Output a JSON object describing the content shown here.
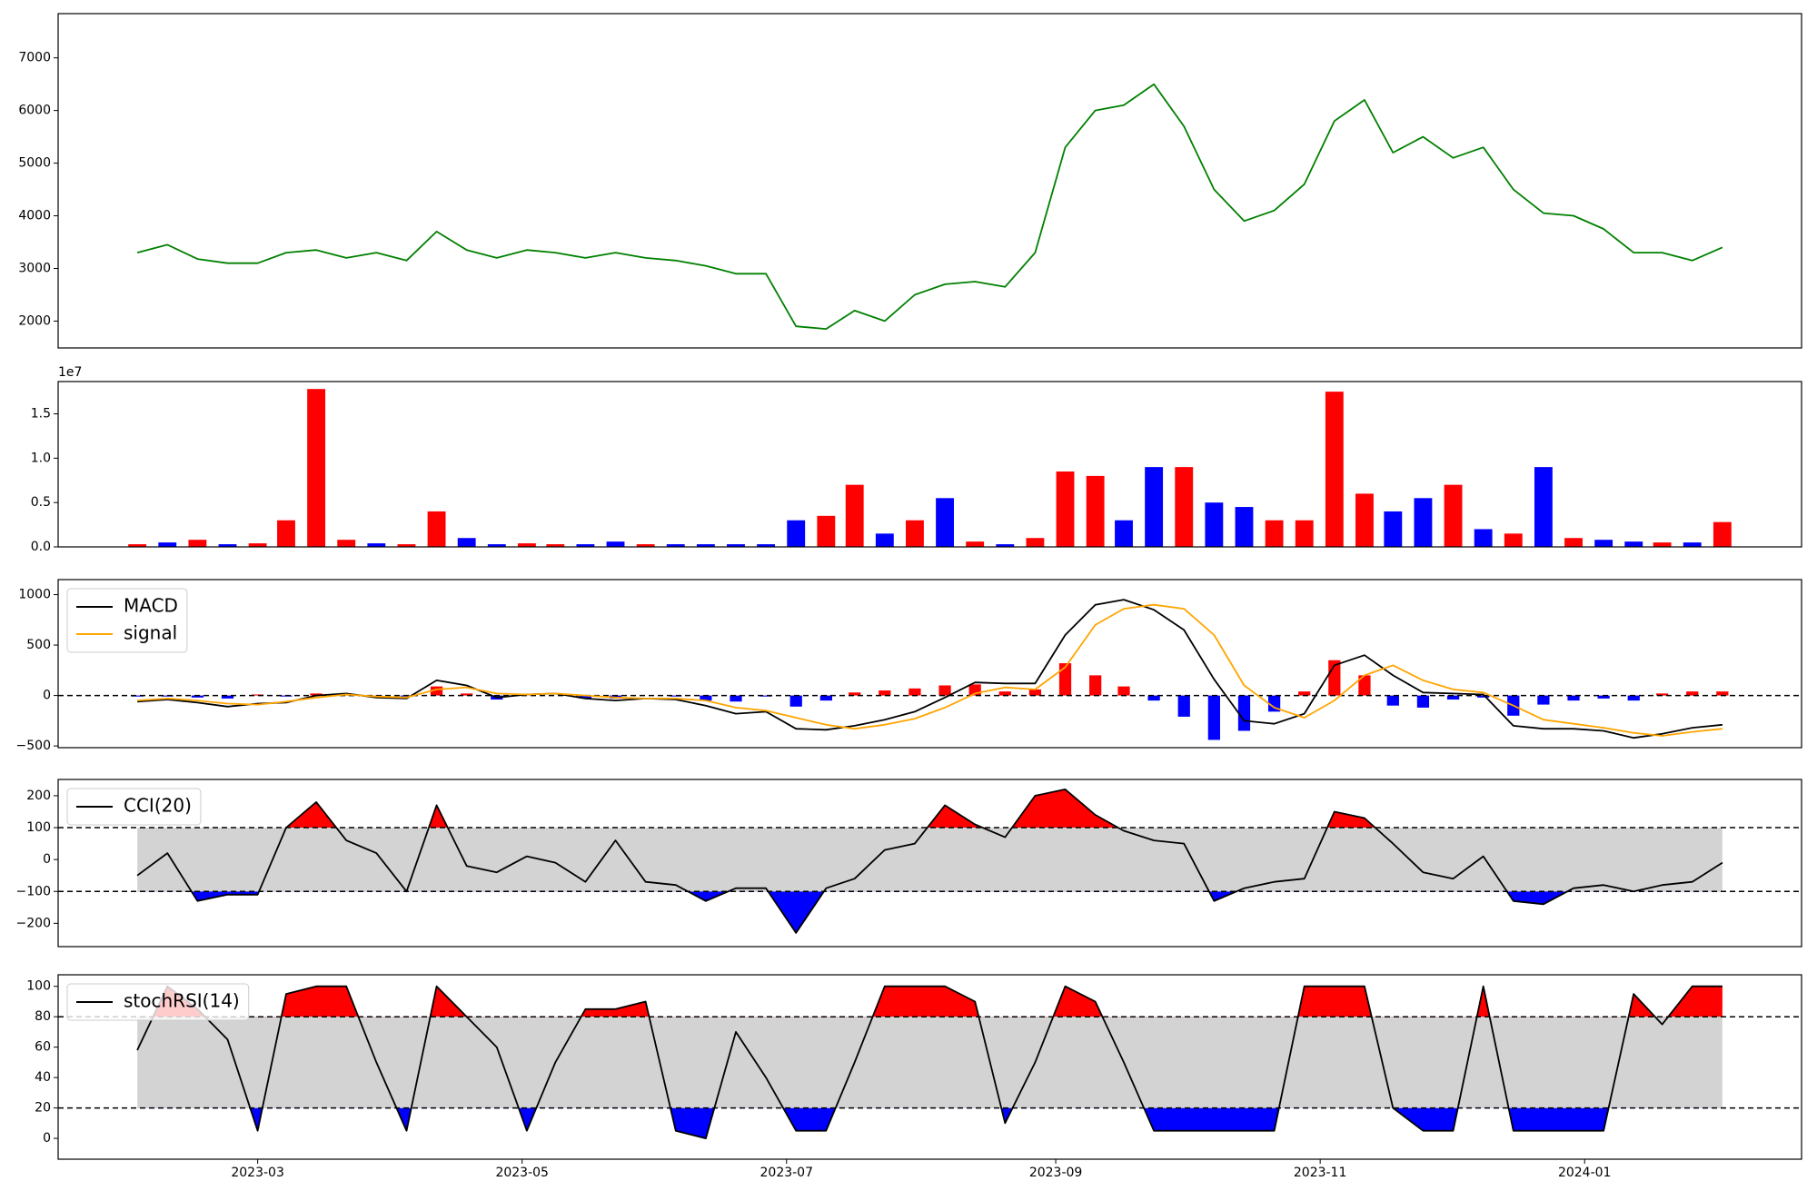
{
  "chart_data": [
    {
      "type": "line",
      "color": "#008000",
      "x": [
        2023.086,
        2023.105,
        2023.124,
        2023.143,
        2023.162,
        2023.18,
        2023.199,
        2023.218,
        2023.237,
        2023.256,
        2023.275,
        2023.294,
        2023.313,
        2023.332,
        2023.35,
        2023.369,
        2023.388,
        2023.407,
        2023.426,
        2023.445,
        2023.464,
        2023.483,
        2023.502,
        2023.521,
        2023.539,
        2023.558,
        2023.577,
        2023.596,
        2023.615,
        2023.634,
        2023.653,
        2023.672,
        2023.691,
        2023.709,
        2023.728,
        2023.747,
        2023.766,
        2023.785,
        2023.804,
        2023.823,
        2023.842,
        2023.861,
        2023.879,
        2023.898,
        2023.917,
        2023.936,
        2023.955,
        2023.974,
        2023.993,
        2024.012,
        2024.031,
        2024.049,
        2024.068,
        2024.087
      ],
      "values": [
        3300,
        3450,
        3180,
        3100,
        3100,
        3300,
        3350,
        3200,
        3300,
        3150,
        3700,
        3350,
        3200,
        3350,
        3300,
        3200,
        3300,
        3200,
        3150,
        3050,
        2900,
        2900,
        1900,
        1850,
        2200,
        2000,
        2500,
        2700,
        2750,
        2650,
        3300,
        5300,
        6000,
        6100,
        6500,
        5700,
        4500,
        3900,
        4100,
        4600,
        5800,
        6200,
        5200,
        5500,
        5100,
        5300,
        4500,
        4050,
        4000,
        3750,
        3300,
        3300,
        3150,
        3400
      ],
      "xlim": [
        2023.036,
        2024.137
      ],
      "ylim": [
        1490,
        7840
      ],
      "yticks": [
        2000,
        3000,
        4000,
        5000,
        6000,
        7000
      ]
    },
    {
      "type": "bar",
      "offset_text": "1e7",
      "x": [
        2023.086,
        2023.105,
        2023.124,
        2023.143,
        2023.162,
        2023.18,
        2023.199,
        2023.218,
        2023.237,
        2023.256,
        2023.275,
        2023.294,
        2023.313,
        2023.332,
        2023.35,
        2023.369,
        2023.388,
        2023.407,
        2023.426,
        2023.445,
        2023.464,
        2023.483,
        2023.502,
        2023.521,
        2023.539,
        2023.558,
        2023.577,
        2023.596,
        2023.615,
        2023.634,
        2023.653,
        2023.672,
        2023.691,
        2023.709,
        2023.728,
        2023.747,
        2023.766,
        2023.785,
        2023.804,
        2023.823,
        2023.842,
        2023.861,
        2023.879,
        2023.898,
        2023.917,
        2023.936,
        2023.955,
        2023.974,
        2023.993,
        2024.012,
        2024.031,
        2024.049,
        2024.068,
        2024.087
      ],
      "values": [
        0.03,
        0.05,
        0.08,
        0.03,
        0.04,
        0.3,
        1.78,
        0.08,
        0.04,
        0.03,
        0.4,
        0.1,
        0.03,
        0.04,
        0.03,
        0.03,
        0.06,
        0.03,
        0.03,
        0.03,
        0.03,
        0.03,
        0.3,
        0.35,
        0.7,
        0.15,
        0.3,
        0.55,
        0.06,
        0.03,
        0.1,
        0.85,
        0.8,
        0.3,
        0.9,
        0.9,
        0.5,
        0.45,
        0.3,
        0.3,
        1.75,
        0.6,
        0.4,
        0.55,
        0.7,
        0.2,
        0.15,
        0.9,
        0.1,
        0.08,
        0.06,
        0.05,
        0.05,
        0.28
      ],
      "colors": [
        "#ff0000",
        "#0000ff",
        "#ff0000",
        "#0000ff",
        "#ff0000",
        "#ff0000",
        "#ff0000",
        "#ff0000",
        "#0000ff",
        "#ff0000",
        "#ff0000",
        "#0000ff",
        "#0000ff",
        "#ff0000",
        "#ff0000",
        "#0000ff",
        "#0000ff",
        "#ff0000",
        "#0000ff",
        "#0000ff",
        "#0000ff",
        "#0000ff",
        "#0000ff",
        "#ff0000",
        "#ff0000",
        "#0000ff",
        "#ff0000",
        "#0000ff",
        "#ff0000",
        "#0000ff",
        "#ff0000",
        "#ff0000",
        "#ff0000",
        "#0000ff",
        "#0000ff",
        "#ff0000",
        "#0000ff",
        "#0000ff",
        "#ff0000",
        "#ff0000",
        "#ff0000",
        "#ff0000",
        "#0000ff",
        "#0000ff",
        "#ff0000",
        "#0000ff",
        "#ff0000",
        "#0000ff",
        "#ff0000",
        "#0000ff",
        "#0000ff",
        "#ff0000",
        "#0000ff",
        "#ff0000"
      ],
      "xlim": [
        2023.036,
        2024.137
      ],
      "ylim": [
        0,
        1.864
      ],
      "yticks": [
        {
          "value": 0,
          "label": "0.0"
        },
        {
          "value": 0.5,
          "label": "0.5"
        },
        {
          "value": 1,
          "label": "1.0"
        },
        {
          "value": 1.5,
          "label": "1.5"
        }
      ]
    },
    {
      "type": "line",
      "legend": "upper left",
      "hlines": [
        0
      ],
      "x": [
        2023.086,
        2023.105,
        2023.124,
        2023.143,
        2023.162,
        2023.18,
        2023.199,
        2023.218,
        2023.237,
        2023.256,
        2023.275,
        2023.294,
        2023.313,
        2023.332,
        2023.35,
        2023.369,
        2023.388,
        2023.407,
        2023.426,
        2023.445,
        2023.464,
        2023.483,
        2023.502,
        2023.521,
        2023.539,
        2023.558,
        2023.577,
        2023.596,
        2023.615,
        2023.634,
        2023.653,
        2023.672,
        2023.691,
        2023.709,
        2023.728,
        2023.747,
        2023.766,
        2023.785,
        2023.804,
        2023.823,
        2023.842,
        2023.861,
        2023.879,
        2023.898,
        2023.917,
        2023.936,
        2023.955,
        2023.974,
        2023.993,
        2024.012,
        2024.031,
        2024.049,
        2024.068,
        2024.087
      ],
      "series": [
        {
          "name": "MACD",
          "color": "#000000",
          "values": [
            -60,
            -40,
            -70,
            -110,
            -80,
            -70,
            0,
            20,
            -20,
            -30,
            150,
            100,
            -20,
            10,
            20,
            -30,
            -50,
            -30,
            -40,
            -100,
            -180,
            -160,
            -330,
            -340,
            -300,
            -240,
            -160,
            -20,
            130,
            120,
            120,
            600,
            900,
            950,
            850,
            650,
            160,
            -250,
            -280,
            -180,
            300,
            400,
            200,
            30,
            20,
            10,
            -300,
            -330,
            -330,
            -350,
            -420,
            -380,
            -320,
            -290
          ]
        },
        {
          "name": "signal",
          "color": "#ffa500",
          "values": [
            -50,
            -30,
            -50,
            -80,
            -90,
            -60,
            -20,
            10,
            -10,
            -20,
            60,
            80,
            20,
            10,
            20,
            0,
            -20,
            -30,
            -30,
            -50,
            -120,
            -150,
            -220,
            -290,
            -330,
            -290,
            -230,
            -120,
            20,
            80,
            60,
            280,
            700,
            860,
            900,
            860,
            600,
            100,
            -120,
            -220,
            -50,
            200,
            300,
            150,
            60,
            30,
            -100,
            -240,
            -280,
            -320,
            -370,
            -400,
            -360,
            -330
          ]
        }
      ],
      "histogram": {
        "positive_color": "#ff0000",
        "negative_color": "#0000ff",
        "values": [
          -10,
          -10,
          -20,
          -30,
          10,
          -10,
          20,
          10,
          -10,
          -10,
          90,
          20,
          -40,
          0,
          0,
          -30,
          -30,
          0,
          -10,
          -50,
          -60,
          -10,
          -110,
          -50,
          30,
          50,
          70,
          100,
          110,
          40,
          60,
          320,
          200,
          90,
          -50,
          -210,
          -440,
          -350,
          -160,
          40,
          350,
          200,
          -100,
          -120,
          -40,
          -20,
          -200,
          -90,
          -50,
          -30,
          -50,
          20,
          40,
          40
        ]
      },
      "xlim": [
        2023.036,
        2024.137
      ],
      "ylim": [
        -517,
        1149
      ],
      "yticks": [
        {
          "value": -500,
          "label": "−500"
        },
        0,
        500,
        1000
      ]
    },
    {
      "type": "oscillator",
      "legend": "upper left",
      "hlines": [
        -100,
        100
      ],
      "band_color": "#d3d3d3",
      "upper_fill": "#ff0000",
      "lower_fill": "#0000ff",
      "x": [
        2023.086,
        2023.105,
        2023.124,
        2023.143,
        2023.162,
        2023.18,
        2023.199,
        2023.218,
        2023.237,
        2023.256,
        2023.275,
        2023.294,
        2023.313,
        2023.332,
        2023.35,
        2023.369,
        2023.388,
        2023.407,
        2023.426,
        2023.445,
        2023.464,
        2023.483,
        2023.502,
        2023.521,
        2023.539,
        2023.558,
        2023.577,
        2023.596,
        2023.615,
        2023.634,
        2023.653,
        2023.672,
        2023.691,
        2023.709,
        2023.728,
        2023.747,
        2023.766,
        2023.785,
        2023.804,
        2023.823,
        2023.842,
        2023.861,
        2023.879,
        2023.898,
        2023.917,
        2023.936,
        2023.955,
        2023.974,
        2023.993,
        2024.012,
        2024.031,
        2024.049,
        2024.068,
        2024.087
      ],
      "series": [
        {
          "name": "CCI(20)",
          "color": "#000000",
          "values": [
            -50,
            20,
            -130,
            -110,
            -110,
            100,
            180,
            60,
            20,
            -100,
            170,
            -20,
            -40,
            10,
            -10,
            -70,
            60,
            -70,
            -80,
            -130,
            -90,
            -90,
            -230,
            -90,
            -60,
            30,
            50,
            170,
            110,
            70,
            200,
            220,
            140,
            90,
            60,
            50,
            -130,
            -90,
            -70,
            -60,
            150,
            130,
            50,
            -40,
            -60,
            10,
            -130,
            -140,
            -90,
            -80,
            -100,
            -80,
            -70,
            -10
          ]
        }
      ],
      "xlim": [
        2023.036,
        2024.137
      ],
      "ylim": [
        -273,
        251
      ],
      "yticks": [
        {
          "value": -200,
          "label": "−200"
        },
        {
          "value": -100,
          "label": "−100"
        },
        0,
        100,
        200
      ]
    },
    {
      "type": "oscillator",
      "legend": "upper left",
      "hlines": [
        20,
        80
      ],
      "band_color": "#d3d3d3",
      "upper_fill": "#ff0000",
      "lower_fill": "#0000ff",
      "x": [
        2023.086,
        2023.105,
        2023.124,
        2023.143,
        2023.162,
        2023.18,
        2023.199,
        2023.218,
        2023.237,
        2023.256,
        2023.275,
        2023.294,
        2023.313,
        2023.332,
        2023.35,
        2023.369,
        2023.388,
        2023.407,
        2023.426,
        2023.445,
        2023.464,
        2023.483,
        2023.502,
        2023.521,
        2023.539,
        2023.558,
        2023.577,
        2023.596,
        2023.615,
        2023.634,
        2023.653,
        2023.672,
        2023.691,
        2023.709,
        2023.728,
        2023.747,
        2023.766,
        2023.785,
        2023.804,
        2023.823,
        2023.842,
        2023.861,
        2023.879,
        2023.898,
        2023.917,
        2023.936,
        2023.955,
        2023.974,
        2023.993,
        2024.012,
        2024.031,
        2024.049,
        2024.068,
        2024.087
      ],
      "series": [
        {
          "name": "stochRSI(14)",
          "color": "#000000",
          "values": [
            58,
            100,
            85,
            65,
            5,
            95,
            100,
            100,
            50,
            5,
            100,
            80,
            60,
            5,
            50,
            85,
            85,
            90,
            5,
            0,
            70,
            40,
            5,
            5,
            50,
            100,
            100,
            100,
            90,
            10,
            50,
            100,
            90,
            50,
            5,
            5,
            5,
            5,
            5,
            100,
            100,
            100,
            20,
            5,
            5,
            100,
            5,
            5,
            5,
            5,
            95,
            75,
            100,
            100
          ]
        }
      ],
      "xlim": [
        2023.036,
        2024.137
      ],
      "ylim": [
        -13.7,
        107.6
      ],
      "yticks": [
        0,
        20,
        40,
        60,
        80,
        100
      ],
      "xticks": [
        {
          "value": 2023.162,
          "label": "2023-03"
        },
        {
          "value": 2023.329,
          "label": "2023-05"
        },
        {
          "value": 2023.496,
          "label": "2023-07"
        },
        {
          "value": 2023.666,
          "label": "2023-09"
        },
        {
          "value": 2023.833,
          "label": "2023-11"
        },
        {
          "value": 2024.0,
          "label": "2024-01"
        }
      ]
    }
  ]
}
